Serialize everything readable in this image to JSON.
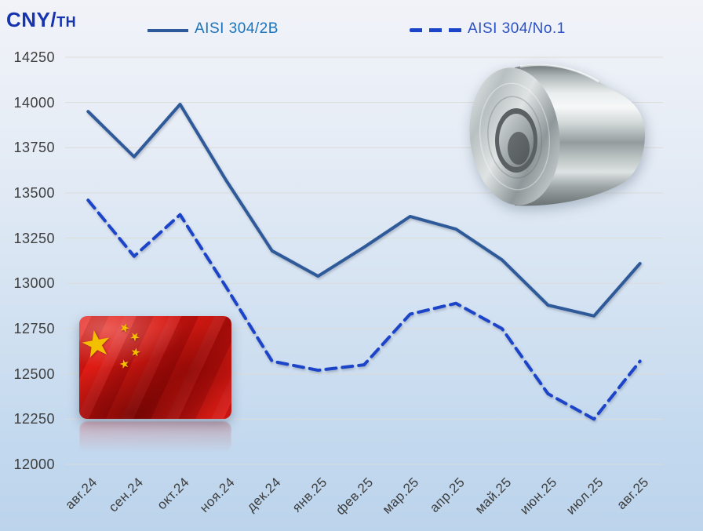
{
  "title": {
    "main": "CNY/",
    "unit": "тн"
  },
  "legend": [
    {
      "label": "AISI 304/2B",
      "style": "solid"
    },
    {
      "label": "AISI 304/No.1",
      "style": "dashed"
    }
  ],
  "colors": {
    "title_text": "#1634ae",
    "legend_2b_text": "#1a73bd",
    "legend_no1_text": "#2a50c5",
    "solid_line": "#2f5a99",
    "dashed_line": "#1c44c9",
    "gridline": "#dcdcd8",
    "axis_text": "#3d3d3d",
    "background_top": "#f1f3f8",
    "background_bottom": "#bcd4ec",
    "flag_red": "#d31410",
    "flag_gold": "#f3c000"
  },
  "decorations": {
    "flag_icon": "china-flag-image",
    "coil_icon": "steel-coil-image",
    "star_glyph": "★"
  },
  "chart_data": {
    "type": "line",
    "title": "CNY/тн",
    "ylabel": "CNY/тн",
    "xlabel": "",
    "ylim": [
      12000,
      14250
    ],
    "ytick_step": 250,
    "grid": true,
    "legend_position": "top",
    "categories": [
      "авг.24",
      "сен.24",
      "окт.24",
      "ноя.24",
      "дек.24",
      "янв.25",
      "фев.25",
      "мар.25",
      "апр.25",
      "май.25",
      "июн.25",
      "июл.25",
      "авг.25"
    ],
    "series": [
      {
        "name": "AISI 304/2B",
        "style": "solid",
        "color": "#2f5a99",
        "values": [
          13950,
          13700,
          13990,
          13570,
          13180,
          13040,
          13200,
          13370,
          13300,
          13130,
          12880,
          12820,
          13110
        ]
      },
      {
        "name": "AISI 304/No.1",
        "style": "dashed",
        "color": "#1c44c9",
        "values": [
          13460,
          13150,
          13380,
          12980,
          12570,
          12520,
          12550,
          12830,
          12890,
          12750,
          12390,
          12250,
          12570
        ]
      }
    ]
  }
}
